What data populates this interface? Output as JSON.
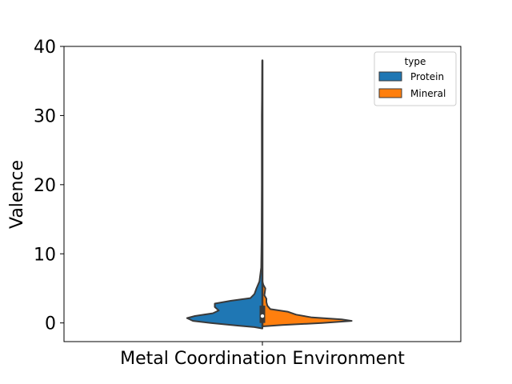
{
  "chart_data": {
    "type": "violin",
    "xlabel": "Metal Coordination Environment",
    "ylabel": "Valence",
    "categories": [
      "Metal Coordination Environment"
    ],
    "ylim": [
      -2.7,
      40
    ],
    "yticks": [
      0,
      10,
      20,
      30,
      40
    ],
    "grid": false,
    "legend": {
      "title": "type",
      "placement": "top-right"
    },
    "split": true,
    "series": [
      {
        "name": "Protein",
        "color": "#1f77b4",
        "side": "left",
        "density": [
          {
            "y": -0.8,
            "w": 0.0
          },
          {
            "y": -0.6,
            "w": 0.04
          },
          {
            "y": -0.4,
            "w": 0.12
          },
          {
            "y": 0.0,
            "w": 0.26
          },
          {
            "y": 0.3,
            "w": 0.35
          },
          {
            "y": 0.7,
            "w": 0.38
          },
          {
            "y": 1.0,
            "w": 0.34
          },
          {
            "y": 1.4,
            "w": 0.25
          },
          {
            "y": 1.8,
            "w": 0.22
          },
          {
            "y": 2.3,
            "w": 0.24
          },
          {
            "y": 2.8,
            "w": 0.24
          },
          {
            "y": 3.2,
            "w": 0.16
          },
          {
            "y": 3.6,
            "w": 0.06
          },
          {
            "y": 4.2,
            "w": 0.04
          },
          {
            "y": 5.0,
            "w": 0.03
          },
          {
            "y": 6.0,
            "w": 0.015
          },
          {
            "y": 8.0,
            "w": 0.006
          },
          {
            "y": 12.0,
            "w": 0.004
          },
          {
            "y": 20.0,
            "w": 0.003
          },
          {
            "y": 30.0,
            "w": 0.003
          },
          {
            "y": 38.0,
            "w": 0.0
          }
        ]
      },
      {
        "name": "Mineral",
        "color": "#ff7f0e",
        "side": "right",
        "density": [
          {
            "y": -0.5,
            "w": 0.0
          },
          {
            "y": -0.3,
            "w": 0.1
          },
          {
            "y": 0.0,
            "w": 0.3
          },
          {
            "y": 0.3,
            "w": 0.45
          },
          {
            "y": 0.5,
            "w": 0.4
          },
          {
            "y": 0.8,
            "w": 0.25
          },
          {
            "y": 1.2,
            "w": 0.17
          },
          {
            "y": 1.6,
            "w": 0.13
          },
          {
            "y": 2.0,
            "w": 0.04
          },
          {
            "y": 2.5,
            "w": 0.025
          },
          {
            "y": 3.0,
            "w": 0.02
          },
          {
            "y": 3.5,
            "w": 0.02
          },
          {
            "y": 4.0,
            "w": 0.01
          },
          {
            "y": 5.0,
            "w": 0.015
          },
          {
            "y": 5.5,
            "w": 0.005
          },
          {
            "y": 6.0,
            "w": 0.0
          }
        ]
      }
    ],
    "box": {
      "q1": 0.0,
      "median": 1.0,
      "q3": 2.5,
      "whisker_low": -0.5,
      "whisker_high": 38.0
    }
  }
}
